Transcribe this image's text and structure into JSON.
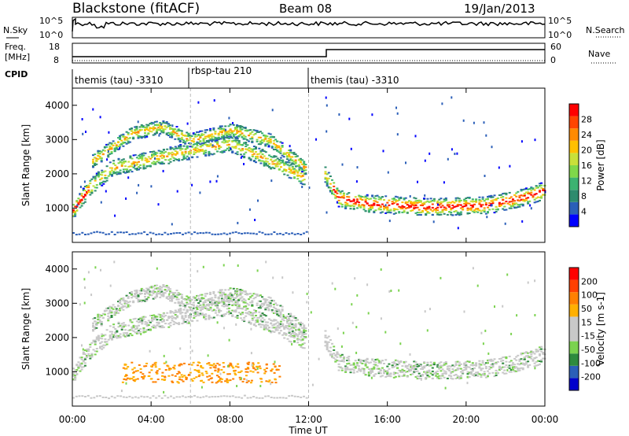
{
  "header": {
    "title": "Blackstone (fitACF)",
    "beam": "Beam 08",
    "date": "19/Jan/2013"
  },
  "noise_panel": {
    "left_label": "N.Sky",
    "left_ticks": [
      "10^5",
      "10^0"
    ],
    "right_ticks": [
      "10^5",
      "10^0"
    ],
    "right_label": "N.Search"
  },
  "freq_panel": {
    "left_label_line1": "Freq.",
    "left_label_line2": "[MHz]",
    "left_ticks": [
      "18",
      "8"
    ],
    "right_ticks": [
      "60",
      "0"
    ],
    "right_label": "Nave"
  },
  "cpid_panel": {
    "label": "CPID",
    "segments": [
      {
        "label": "themis (tau) -3310",
        "start_hour": 0,
        "end_hour": 6
      },
      {
        "label": "rbsp-tau 210",
        "start_hour": 6,
        "end_hour": 12
      },
      {
        "label": "themis (tau) -3310",
        "start_hour": 12,
        "end_hour": 24
      }
    ]
  },
  "x_axis": {
    "label": "Time UT",
    "ticks": [
      "00:00",
      "04:00",
      "08:00",
      "12:00",
      "16:00",
      "20:00",
      "00:00"
    ]
  },
  "chart_data": [
    {
      "type": "heatmap",
      "name": "power",
      "ylabel": "Slant Range [km]",
      "yticks": [
        "1000",
        "2000",
        "3000",
        "4000"
      ],
      "ylim": [
        0,
        4500
      ],
      "xlim": [
        0,
        24
      ],
      "colorbar": {
        "label": "Power [dB]",
        "tick_labels": [
          "4",
          "8",
          "12",
          "16",
          "20",
          "24",
          "28"
        ],
        "colors": [
          "#0000ff",
          "#2b5fb8",
          "#2e8b6e",
          "#3cb371",
          "#7fd84a",
          "#c8e03a",
          "#ffc000",
          "#ff8a00",
          "#ff4500",
          "#ff0000"
        ]
      },
      "bands": [
        {
          "x": [
            0.0,
            0.8,
            2.0,
            4.0,
            6.0,
            8.0,
            10.0,
            11.8
          ],
          "y": [
            950,
            1600,
            2200,
            2450,
            2700,
            2900,
            2400,
            1900
          ],
          "thickness": 300
        },
        {
          "x": [
            1.0,
            3.0,
            4.5,
            6.0,
            8.0,
            10.0,
            11.8
          ],
          "y": [
            2400,
            3200,
            3400,
            3000,
            3300,
            3000,
            2200
          ],
          "thickness": 250
        },
        {
          "x": [
            12.8,
            13.5,
            15.0,
            18.0,
            21.0,
            23.0,
            24.0
          ],
          "y": [
            2000,
            1300,
            1150,
            1050,
            1100,
            1350,
            1550
          ],
          "thickness": 320
        }
      ]
    },
    {
      "type": "heatmap",
      "name": "velocity",
      "ylabel": "Slant Range [km]",
      "yticks": [
        "1000",
        "2000",
        "3000",
        "4000"
      ],
      "ylim": [
        0,
        4500
      ],
      "xlim": [
        0,
        24
      ],
      "colorbar": {
        "label": "Velocity [m s-1]",
        "tick_labels": [
          "200",
          "100",
          "50",
          "15",
          "-15",
          "-50",
          "-100",
          "-200"
        ],
        "colors": [
          "#0000cc",
          "#2b5fb8",
          "#2e8b3e",
          "#7bd34f",
          "#c8c8c8",
          "#c8c8c8",
          "#ffb000",
          "#ff8000",
          "#ff4000",
          "#ff0000"
        ]
      },
      "bands": [
        {
          "x": [
            0.0,
            0.8,
            2.0,
            4.0,
            6.0,
            8.0,
            10.0,
            11.8
          ],
          "y": [
            950,
            1600,
            2200,
            2450,
            2700,
            2900,
            2400,
            1900
          ],
          "thickness": 300
        },
        {
          "x": [
            1.0,
            3.0,
            4.5,
            6.0,
            8.0,
            10.0,
            11.8
          ],
          "y": [
            2400,
            3200,
            3400,
            3000,
            3300,
            3000,
            2200
          ],
          "thickness": 250
        },
        {
          "x": [
            12.8,
            13.5,
            15.0,
            18.0,
            21.0,
            23.0,
            24.0
          ],
          "y": [
            2000,
            1300,
            1150,
            1050,
            1100,
            1350,
            1550
          ],
          "thickness": 320
        }
      ],
      "blob": {
        "x": [
          2.5,
          10.5
        ],
        "y": [
          700,
          1300
        ],
        "colors": [
          "#ffb000",
          "#ff8000"
        ]
      }
    }
  ]
}
